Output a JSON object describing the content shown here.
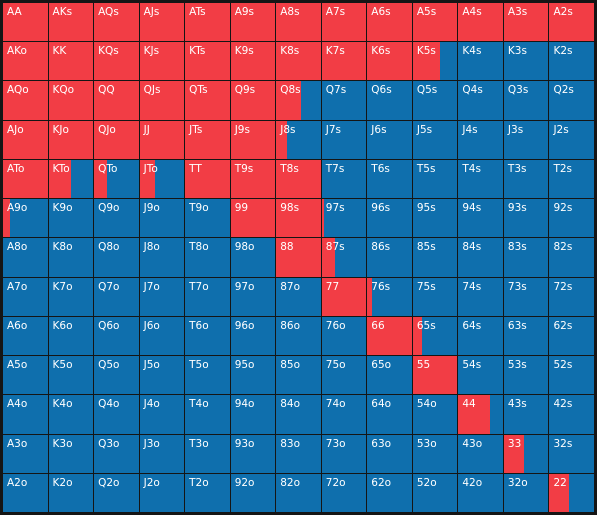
{
  "colors": {
    "raise": "#f23d45",
    "fold": "#0f6fad",
    "gridline": "#151515"
  },
  "chart_data": {
    "type": "heatmap",
    "ranks": [
      "A",
      "K",
      "Q",
      "J",
      "T",
      "9",
      "8",
      "7",
      "6",
      "5",
      "4",
      "3",
      "2"
    ],
    "labels": [
      [
        "AA",
        "AKs",
        "AQs",
        "AJs",
        "ATs",
        "A9s",
        "A8s",
        "A7s",
        "A6s",
        "A5s",
        "A4s",
        "A3s",
        "A2s"
      ],
      [
        "AKo",
        "KK",
        "KQs",
        "KJs",
        "KTs",
        "K9s",
        "K8s",
        "K7s",
        "K6s",
        "K5s",
        "K4s",
        "K3s",
        "K2s"
      ],
      [
        "AQo",
        "KQo",
        "QQ",
        "QJs",
        "QTs",
        "Q9s",
        "Q8s",
        "Q7s",
        "Q6s",
        "Q5s",
        "Q4s",
        "Q3s",
        "Q2s"
      ],
      [
        "AJo",
        "KJo",
        "QJo",
        "JJ",
        "JTs",
        "J9s",
        "J8s",
        "J7s",
        "J6s",
        "J5s",
        "J4s",
        "J3s",
        "J2s"
      ],
      [
        "ATo",
        "KTo",
        "QTo",
        "JTo",
        "TT",
        "T9s",
        "T8s",
        "T7s",
        "T6s",
        "T5s",
        "T4s",
        "T3s",
        "T2s"
      ],
      [
        "A9o",
        "K9o",
        "Q9o",
        "J9o",
        "T9o",
        "99",
        "98s",
        "97s",
        "96s",
        "95s",
        "94s",
        "93s",
        "92s"
      ],
      [
        "A8o",
        "K8o",
        "Q8o",
        "J8o",
        "T8o",
        "98o",
        "88",
        "87s",
        "86s",
        "85s",
        "84s",
        "83s",
        "82s"
      ],
      [
        "A7o",
        "K7o",
        "Q7o",
        "J7o",
        "T7o",
        "97o",
        "87o",
        "77",
        "76s",
        "75s",
        "74s",
        "73s",
        "72s"
      ],
      [
        "A6o",
        "K6o",
        "Q6o",
        "J6o",
        "T6o",
        "96o",
        "86o",
        "76o",
        "66",
        "65s",
        "64s",
        "63s",
        "62s"
      ],
      [
        "A5o",
        "K5o",
        "Q5o",
        "J5o",
        "T5o",
        "95o",
        "85o",
        "75o",
        "65o",
        "55",
        "54s",
        "53s",
        "52s"
      ],
      [
        "A4o",
        "K4o",
        "Q4o",
        "J4o",
        "T4o",
        "94o",
        "84o",
        "74o",
        "64o",
        "54o",
        "44",
        "43s",
        "42s"
      ],
      [
        "A3o",
        "K3o",
        "Q3o",
        "J3o",
        "T3o",
        "93o",
        "83o",
        "73o",
        "63o",
        "53o",
        "43o",
        "33",
        "32s"
      ],
      [
        "A2o",
        "K2o",
        "Q2o",
        "J2o",
        "T2o",
        "92o",
        "82o",
        "72o",
        "62o",
        "52o",
        "42o",
        "32o",
        "22"
      ]
    ],
    "raise_fraction": [
      [
        1,
        1,
        1,
        1,
        1,
        1,
        1,
        1,
        1,
        1,
        1,
        1,
        1
      ],
      [
        1,
        1,
        1,
        1,
        1,
        1,
        1,
        1,
        1,
        0.6,
        0,
        0,
        0
      ],
      [
        1,
        1,
        1,
        1,
        1,
        1,
        0.55,
        0,
        0,
        0,
        0,
        0,
        0
      ],
      [
        1,
        1,
        1,
        1,
        1,
        1,
        0.25,
        0,
        0,
        0,
        0,
        0,
        0
      ],
      [
        1,
        0.5,
        0.3,
        0.35,
        1,
        1,
        1,
        0,
        0,
        0,
        0,
        0,
        0
      ],
      [
        0.15,
        0,
        0,
        0,
        0,
        1,
        1,
        0.05,
        0,
        0,
        0,
        0,
        0
      ],
      [
        0,
        0,
        0,
        0,
        0,
        0,
        1,
        0.3,
        0,
        0,
        0,
        0,
        0
      ],
      [
        0,
        0,
        0,
        0,
        0,
        0,
        0,
        1,
        0.1,
        0,
        0,
        0,
        0
      ],
      [
        0,
        0,
        0,
        0,
        0,
        0,
        0,
        0,
        1,
        0.2,
        0,
        0,
        0
      ],
      [
        0,
        0,
        0,
        0,
        0,
        0,
        0,
        0,
        0,
        1,
        0,
        0,
        0
      ],
      [
        0,
        0,
        0,
        0,
        0,
        0,
        0,
        0,
        0,
        0,
        0.7,
        0,
        0
      ],
      [
        0,
        0,
        0,
        0,
        0,
        0,
        0,
        0,
        0,
        0,
        0,
        0.45,
        0
      ],
      [
        0,
        0,
        0,
        0,
        0,
        0,
        0,
        0,
        0,
        0,
        0,
        0,
        0.45
      ]
    ]
  }
}
